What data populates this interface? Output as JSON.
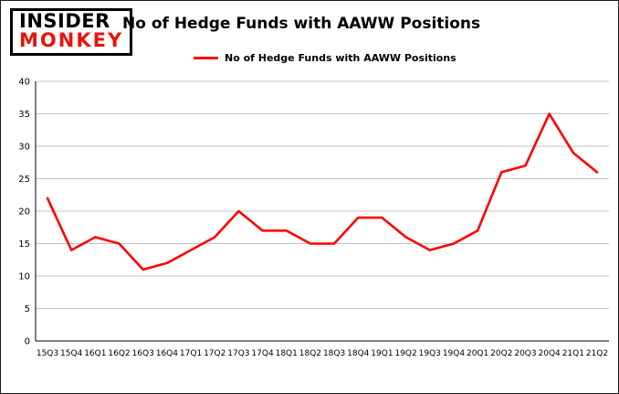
{
  "logo": {
    "line1": "INSIDER",
    "line2": "MONKEY"
  },
  "title": "No of Hedge Funds with AAWW Positions",
  "legend": {
    "label": "No of Hedge Funds with AAWW Positions"
  },
  "colors": {
    "line": "#ff0000",
    "grid": "#c4c4c4",
    "axis": "#000000",
    "logo_red": "#e8140c",
    "text": "#000000"
  },
  "chart_data": {
    "type": "line",
    "title": "No of Hedge Funds with AAWW Positions",
    "categories": [
      "15Q3",
      "15Q4",
      "16Q1",
      "16Q2",
      "16Q3",
      "16Q4",
      "17Q1",
      "17Q2",
      "17Q3",
      "17Q4",
      "18Q1",
      "18Q2",
      "18Q3",
      "18Q4",
      "19Q1",
      "19Q2",
      "19Q3",
      "19Q4",
      "20Q1",
      "20Q2",
      "20Q3",
      "20Q4",
      "21Q1",
      "21Q2"
    ],
    "series": [
      {
        "name": "No of Hedge Funds with AAWW Positions",
        "color": "#ff0000",
        "values": [
          22,
          14,
          16,
          15,
          11,
          12,
          14,
          16,
          20,
          17,
          17,
          15,
          15,
          19,
          19,
          16,
          14,
          15,
          17,
          26,
          27,
          35,
          29,
          26
        ]
      }
    ],
    "xlabel": "",
    "ylabel": "",
    "ylim": [
      0,
      40
    ],
    "ytick_step": 5,
    "grid": true,
    "legend_position": "top-left"
  }
}
